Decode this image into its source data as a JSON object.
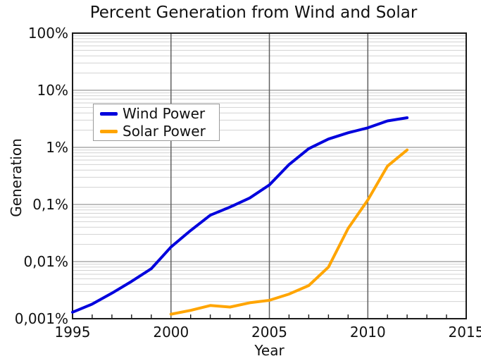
{
  "title": "Percent Generation from Wind and Solar",
  "axes": {
    "x_label": "Year",
    "y_label": "Generation",
    "x_tick_labels": [
      "1995",
      "2000",
      "2005",
      "2010",
      "2015"
    ],
    "x_tick_values": [
      1995,
      2000,
      2005,
      2010,
      2015
    ],
    "y_tick_labels": [
      "100%",
      "10%",
      "1%",
      "0,1%",
      "0,01%",
      "0,001%"
    ],
    "y_tick_values": [
      100,
      10,
      1,
      0.1,
      0.01,
      0.001
    ],
    "x_gridline_years": [
      2000,
      2005,
      2010
    ]
  },
  "colors": {
    "wind": "#0000dd",
    "solar": "#ffa500",
    "spine": "#1a1a1a",
    "major_grid_h": "#999999",
    "minor_grid_h": "#d2d2d2",
    "major_grid_v": "#606060",
    "tick": "#1a1a1a",
    "text": "#111111"
  },
  "chart_data": {
    "type": "line",
    "title": "Percent Generation from Wind and Solar",
    "xlabel": "Year",
    "ylabel": "Generation",
    "x_range": [
      1995,
      2015
    ],
    "y_scale": "log",
    "y_range": [
      0.001,
      100
    ],
    "y_unit": "%",
    "grid": {
      "horizontal_major": true,
      "horizontal_minor": true,
      "vertical_major": true
    },
    "legend_position": "upper-left-inside",
    "series": [
      {
        "name": "Wind Power",
        "color": "#0000dd",
        "x": [
          1995,
          1996,
          1997,
          1998,
          1999,
          2000,
          2001,
          2002,
          2003,
          2004,
          2005,
          2006,
          2007,
          2008,
          2009,
          2010,
          2011,
          2012
        ],
        "y": [
          0.0013,
          0.0018,
          0.0028,
          0.0045,
          0.0075,
          0.018,
          0.035,
          0.065,
          0.09,
          0.13,
          0.22,
          0.5,
          0.95,
          1.4,
          1.8,
          2.2,
          2.9,
          3.3
        ]
      },
      {
        "name": "Solar Power",
        "color": "#ffa500",
        "x": [
          2000,
          2001,
          2002,
          2003,
          2004,
          2005,
          2006,
          2007,
          2008,
          2009,
          2010,
          2011,
          2012
        ],
        "y": [
          0.0012,
          0.0014,
          0.0017,
          0.0016,
          0.0019,
          0.0021,
          0.0027,
          0.0038,
          0.008,
          0.038,
          0.12,
          0.47,
          0.9
        ]
      }
    ]
  }
}
